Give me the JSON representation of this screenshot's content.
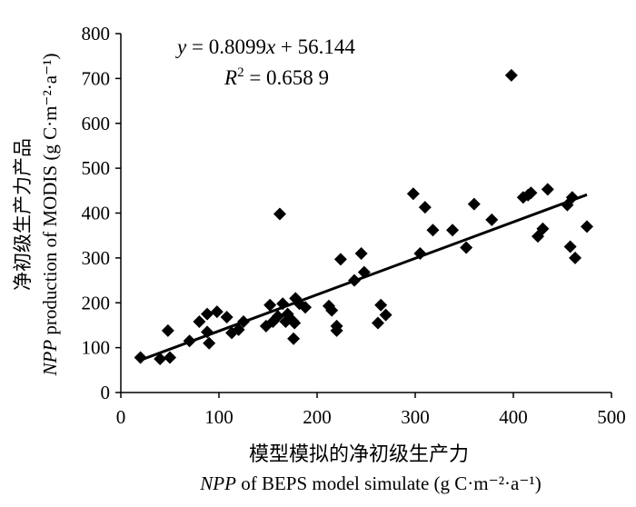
{
  "chart_data": {
    "type": "scatter",
    "title": "",
    "xlabel": {
      "cn": "模型模拟的净初级生产力",
      "en_var": "NPP",
      "en_text": " of BEPS model simulate (g C·m⁻²·a⁻¹)"
    },
    "ylabel": {
      "cn": "净初级生产力产品",
      "en_var": "NPP",
      "en_text": " production of MODIS (g C·m⁻²·a⁻¹)"
    },
    "xlim": [
      0,
      500
    ],
    "ylim": [
      0,
      800
    ],
    "xticks": [
      "0",
      "100",
      "200",
      "300",
      "400",
      "500"
    ],
    "yticks": [
      "0",
      "100",
      "200",
      "300",
      "400",
      "500",
      "600",
      "700",
      "800"
    ],
    "grid": false,
    "marker": "diamond",
    "equation": {
      "y_var": "y",
      "eq_text": " = 0.8099",
      "x_var": "x",
      "rest": " + 56.144",
      "r2_var": "R",
      "r2_sup": "2",
      "r2_text": " = 0.658 9"
    },
    "trendline": {
      "slope": 0.8099,
      "intercept": 56.144,
      "x_range": [
        20,
        475
      ]
    },
    "points": [
      [
        20,
        78
      ],
      [
        40,
        75
      ],
      [
        48,
        138
      ],
      [
        50,
        78
      ],
      [
        70,
        115
      ],
      [
        80,
        158
      ],
      [
        88,
        135
      ],
      [
        88,
        175
      ],
      [
        90,
        110
      ],
      [
        98,
        180
      ],
      [
        108,
        168
      ],
      [
        113,
        133
      ],
      [
        120,
        140
      ],
      [
        125,
        158
      ],
      [
        148,
        148
      ],
      [
        152,
        195
      ],
      [
        155,
        158
      ],
      [
        160,
        170
      ],
      [
        162,
        398
      ],
      [
        165,
        198
      ],
      [
        168,
        158
      ],
      [
        170,
        175
      ],
      [
        175,
        160
      ],
      [
        176,
        120
      ],
      [
        177,
        155
      ],
      [
        178,
        210
      ],
      [
        182,
        198
      ],
      [
        188,
        190
      ],
      [
        212,
        193
      ],
      [
        215,
        183
      ],
      [
        220,
        148
      ],
      [
        220,
        138
      ],
      [
        224,
        297
      ],
      [
        238,
        250
      ],
      [
        245,
        310
      ],
      [
        248,
        268
      ],
      [
        262,
        155
      ],
      [
        265,
        195
      ],
      [
        270,
        173
      ],
      [
        298,
        443
      ],
      [
        305,
        310
      ],
      [
        310,
        413
      ],
      [
        318,
        362
      ],
      [
        338,
        362
      ],
      [
        352,
        323
      ],
      [
        360,
        420
      ],
      [
        378,
        385
      ],
      [
        398,
        707
      ],
      [
        410,
        435
      ],
      [
        415,
        440
      ],
      [
        418,
        445
      ],
      [
        425,
        348
      ],
      [
        430,
        365
      ],
      [
        435,
        453
      ],
      [
        455,
        418
      ],
      [
        458,
        325
      ],
      [
        460,
        435
      ],
      [
        463,
        300
      ],
      [
        475,
        370
      ]
    ]
  }
}
